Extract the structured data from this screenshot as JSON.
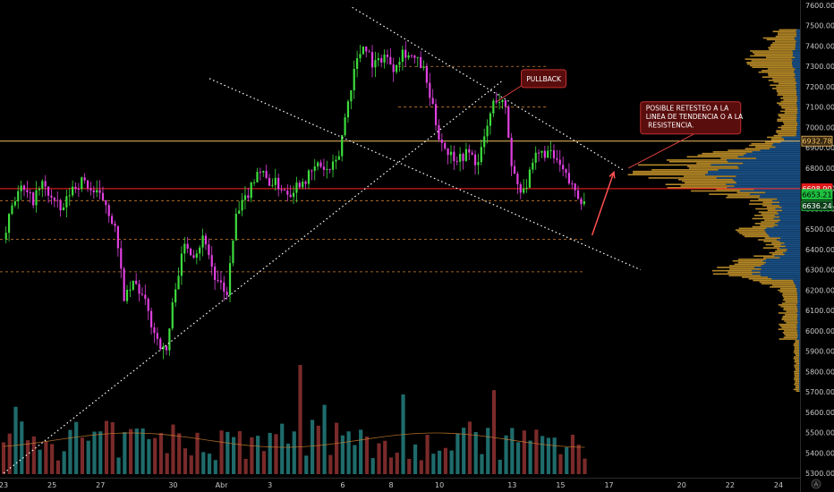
{
  "chart_data": {
    "type": "candlestick",
    "y_axis": {
      "min": 5250,
      "max": 7650,
      "ticks": [
        7600,
        7500,
        7400,
        7300,
        7200,
        7100,
        7000,
        6900,
        6800,
        6700,
        6600,
        6500,
        6400,
        6300,
        6200,
        6100,
        6000,
        5900,
        5800,
        5700,
        5600,
        5500,
        5400,
        5300
      ],
      "tick_labels": [
        "7600.00",
        "7500.00",
        "7400.00",
        "7300.00",
        "7200.00",
        "7100.00",
        "7000.00",
        "6900.00",
        "6800.00",
        "6700.00",
        "6600.00",
        "6500.00",
        "6400.00",
        "6300.00",
        "6200.00",
        "6100.00",
        "6000.00",
        "5900.00",
        "5800.00",
        "5700.00",
        "5600.00",
        "5500.00",
        "5400.00",
        "5300.00"
      ]
    },
    "x_axis": {
      "labels": [
        {
          "text": "23",
          "day": 23.0
        },
        {
          "text": "25",
          "day": 25.0
        },
        {
          "text": "27",
          "day": 27.0
        },
        {
          "text": "30",
          "day": 30.0
        },
        {
          "text": "Abr",
          "day": 32.0
        },
        {
          "text": "3",
          "day": 34.0
        },
        {
          "text": "6",
          "day": 37.0
        },
        {
          "text": "8",
          "day": 39.0
        },
        {
          "text": "10",
          "day": 41.0
        },
        {
          "text": "13",
          "day": 44.0
        },
        {
          "text": "15",
          "day": 46.0
        },
        {
          "text": "17",
          "day": 48.0
        },
        {
          "text": "20",
          "day": 51.0
        },
        {
          "text": "22",
          "day": 53.0
        },
        {
          "text": "24",
          "day": 55.0
        }
      ]
    },
    "price_path": [
      [
        23.0,
        6450
      ],
      [
        23.3,
        6620
      ],
      [
        23.7,
        6700
      ],
      [
        24.2,
        6640
      ],
      [
        24.6,
        6720
      ],
      [
        25.0,
        6650
      ],
      [
        25.4,
        6580
      ],
      [
        25.8,
        6700
      ],
      [
        26.3,
        6740
      ],
      [
        26.7,
        6680
      ],
      [
        27.2,
        6640
      ],
      [
        27.6,
        6500
      ],
      [
        28.0,
        6150
      ],
      [
        28.4,
        6240
      ],
      [
        28.8,
        6150
      ],
      [
        29.2,
        6000
      ],
      [
        29.7,
        5880
      ],
      [
        30.1,
        6230
      ],
      [
        30.5,
        6430
      ],
      [
        30.9,
        6380
      ],
      [
        31.3,
        6470
      ],
      [
        31.7,
        6260
      ],
      [
        32.2,
        6170
      ],
      [
        32.6,
        6560
      ],
      [
        33.0,
        6650
      ],
      [
        33.5,
        6800
      ],
      [
        33.9,
        6740
      ],
      [
        34.3,
        6720
      ],
      [
        34.8,
        6680
      ],
      [
        35.2,
        6730
      ],
      [
        35.6,
        6760
      ],
      [
        36.0,
        6820
      ],
      [
        36.4,
        6780
      ],
      [
        36.8,
        6830
      ],
      [
        37.1,
        7050
      ],
      [
        37.5,
        7300
      ],
      [
        37.9,
        7420
      ],
      [
        38.3,
        7300
      ],
      [
        38.7,
        7360
      ],
      [
        39.1,
        7300
      ],
      [
        39.5,
        7380
      ],
      [
        39.9,
        7340
      ],
      [
        40.3,
        7300
      ],
      [
        40.7,
        7100
      ],
      [
        41.0,
        6950
      ],
      [
        41.4,
        6870
      ],
      [
        41.8,
        6850
      ],
      [
        42.2,
        6880
      ],
      [
        42.6,
        6820
      ],
      [
        43.0,
        7020
      ],
      [
        43.3,
        7150
      ],
      [
        43.7,
        7110
      ],
      [
        44.0,
        6800
      ],
      [
        44.3,
        6700
      ],
      [
        44.6,
        6720
      ],
      [
        45.0,
        6860
      ],
      [
        45.4,
        6880
      ],
      [
        45.8,
        6840
      ],
      [
        46.1,
        6780
      ],
      [
        46.4,
        6720
      ],
      [
        46.7,
        6680
      ],
      [
        47.0,
        6620
      ]
    ],
    "horizontal_levels": [
      {
        "price": 6932.78,
        "label": "6932.78",
        "color": "#f0c060",
        "style": "solid"
      },
      {
        "price": 6698.9,
        "label": "6698.90",
        "color": "#ff2020",
        "style": "solid"
      },
      {
        "price": 6653.21,
        "label": "6653.21",
        "color": "#2ecc71",
        "style": "tag"
      },
      {
        "price": 6636.24,
        "label": "6636.24",
        "color": "#2ecc71",
        "style": "tag"
      },
      {
        "price": 7300,
        "label": "",
        "color": "#d08030",
        "style": "dashed"
      },
      {
        "price": 7100,
        "label": "",
        "color": "#d08030",
        "style": "dashed"
      },
      {
        "price": 6640,
        "label": "",
        "color": "#d08030",
        "style": "dashed"
      },
      {
        "price": 6450,
        "label": "",
        "color": "#d08030",
        "style": "dashed"
      },
      {
        "price": 6290,
        "label": "",
        "color": "#d08030",
        "style": "dashed"
      }
    ],
    "trend_lines": [
      {
        "from": [
          23.0,
          5300
        ],
        "to": [
          43.6,
          7230
        ]
      },
      {
        "from": [
          31.5,
          7240
        ],
        "to": [
          49.3,
          6300
        ]
      },
      {
        "from": [
          37.4,
          7590
        ],
        "to": [
          48.6,
          6790
        ]
      }
    ],
    "annotations": [
      {
        "text": "PULLBACK",
        "day": 44.6,
        "price": 7240
      },
      {
        "text": "POSIBLE RETESTEO A LA LINEA DE TENDENCIA O A LA RESISTENCIA.",
        "day": 49.3,
        "price": 7100
      }
    ],
    "volume": {
      "color_up": "#1f6b6b",
      "color_down": "#7a2a2a",
      "avg_line_color": "#d08030"
    },
    "volume_profile": {
      "value_area_color": "#1e5fa0",
      "outside_color": "#c8962a"
    },
    "colors": {
      "bull": "#3ddc3d",
      "bear": "#e040e0",
      "background": "#000000"
    },
    "watermark_icon": "tradingview-logo-icon"
  }
}
